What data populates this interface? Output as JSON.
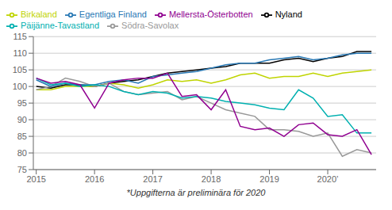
{
  "chart_data": {
    "type": "line",
    "annotations": [
      "*Uppgifterna är preliminära för 2020"
    ],
    "x": [
      2015.0,
      2015.25,
      2015.5,
      2015.75,
      2016.0,
      2016.25,
      2016.5,
      2016.75,
      2017.0,
      2017.25,
      2017.5,
      2017.75,
      2018.0,
      2018.25,
      2018.5,
      2018.75,
      2019.0,
      2019.25,
      2019.5,
      2019.75,
      2020.0,
      2020.25,
      2020.5,
      2020.75
    ],
    "series": [
      {
        "name": "Nyland",
        "color": "#000000",
        "values": [
          100.0,
          99.5,
          100.5,
          100.5,
          100.0,
          101.0,
          101.5,
          102.0,
          103.0,
          104.0,
          104.5,
          105.0,
          105.5,
          106.0,
          107.0,
          107.0,
          107.0,
          108.0,
          108.5,
          107.5,
          108.5,
          109.0,
          110.5,
          110.5
        ]
      },
      {
        "name": "Birkaland",
        "color": "#bfd400",
        "values": [
          99.0,
          99.0,
          100.0,
          100.0,
          100.0,
          101.0,
          100.5,
          99.5,
          100.5,
          102.0,
          101.5,
          102.0,
          101.0,
          102.0,
          103.5,
          104.0,
          102.5,
          103.0,
          103.0,
          104.0,
          103.0,
          104.0,
          104.5,
          105.0
        ]
      },
      {
        "name": "Södra-Savolax",
        "color": "#999999",
        "values": [
          99.0,
          100.0,
          102.5,
          101.5,
          100.0,
          101.0,
          98.5,
          97.5,
          98.0,
          98.5,
          96.0,
          97.0,
          95.0,
          93.0,
          92.0,
          91.0,
          87.0,
          87.0,
          86.5,
          85.0,
          86.0,
          79.0,
          81.0,
          80.0
        ]
      },
      {
        "name": "Egentliga Finland",
        "color": "#2878b4",
        "values": [
          102.0,
          100.0,
          101.0,
          100.5,
          100.5,
          101.5,
          102.0,
          101.0,
          103.0,
          103.5,
          104.0,
          104.5,
          105.5,
          106.5,
          107.0,
          107.0,
          108.0,
          108.5,
          109.0,
          108.0,
          108.5,
          109.5,
          110.0,
          110.0
        ]
      },
      {
        "name": "Päijänne-Tavastland",
        "color": "#00b0b0",
        "values": [
          102.5,
          100.5,
          101.0,
          100.0,
          100.5,
          100.0,
          98.5,
          97.5,
          98.5,
          98.0,
          96.5,
          97.0,
          96.5,
          95.5,
          95.0,
          94.5,
          93.5,
          93.0,
          99.0,
          96.5,
          91.0,
          91.5,
          86.0,
          86.0
        ]
      },
      {
        "name": "Mellersta-Österbotten",
        "color": "#900090",
        "values": [
          102.5,
          101.0,
          101.5,
          100.5,
          93.5,
          101.0,
          102.0,
          102.5,
          102.5,
          104.0,
          97.0,
          97.5,
          93.0,
          99.0,
          88.0,
          87.0,
          87.5,
          85.0,
          88.5,
          89.0,
          85.5,
          85.0,
          87.0,
          79.5
        ]
      }
    ],
    "xlim": [
      2014.95,
      2020.83
    ],
    "xticks": [
      2015,
      2016,
      2017,
      2018,
      2019,
      {
        "value": 2020,
        "label": "2020’"
      }
    ],
    "ylim": [
      75,
      115
    ],
    "yticks": [
      75,
      80,
      85,
      90,
      95,
      100,
      105,
      110,
      115
    ],
    "grid": true,
    "legend": "upper left"
  }
}
